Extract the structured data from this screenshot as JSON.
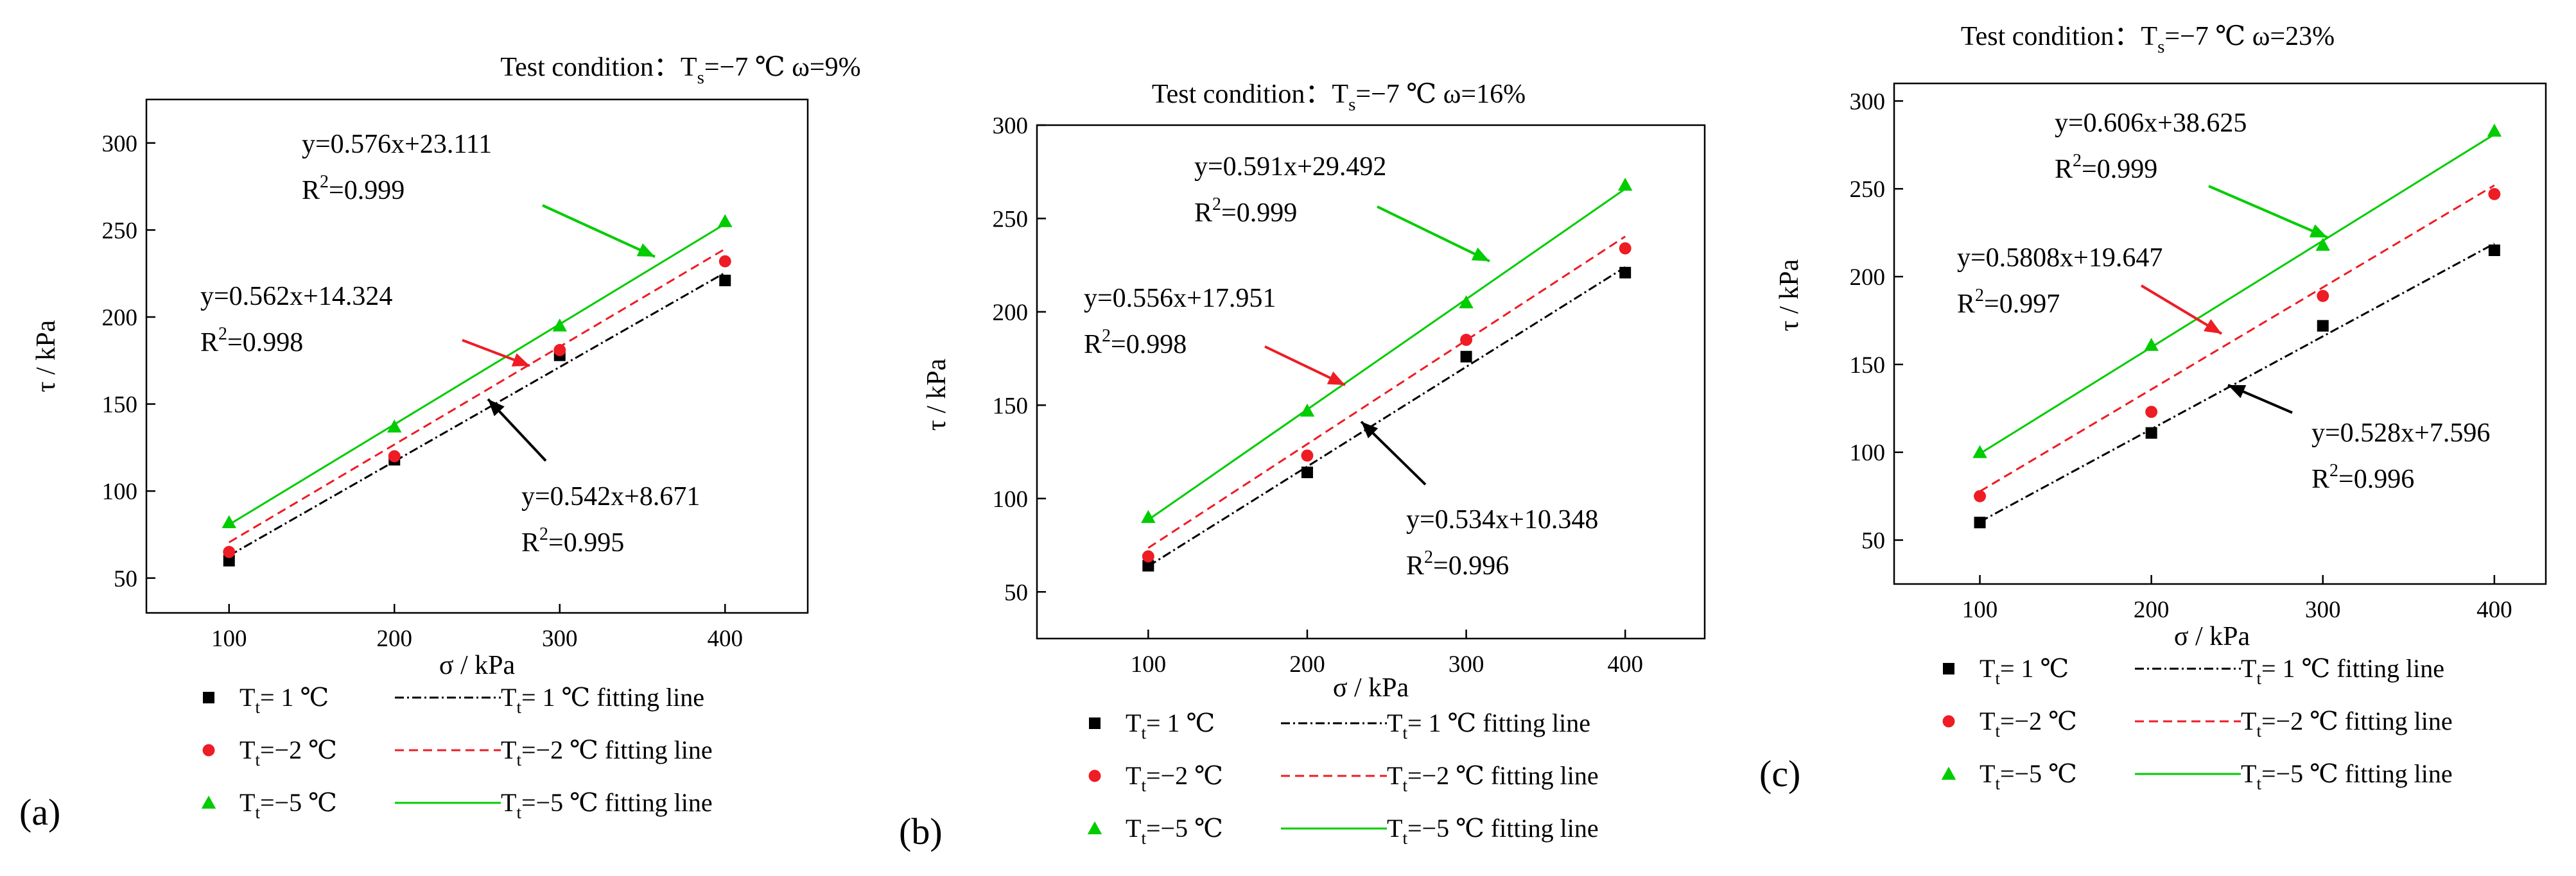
{
  "colors": {
    "t1": "#000000",
    "t2": "#ee1c24",
    "t5": "#00cc00",
    "black": "#000000"
  },
  "legend_labels": {
    "t1": {
      "main": "T",
      "sub": "t",
      "rest": "=  1 ℃"
    },
    "t2": {
      "main": "T",
      "sub": "t",
      "rest": "=−2 ℃"
    },
    "t5": {
      "main": "T",
      "sub": "t",
      "rest": "=−5 ℃"
    },
    "fit_suffix": "fitting line"
  },
  "chart_data": [
    {
      "panel": "(a)",
      "type": "scatter",
      "title": "Test condition：T",
      "title_sub": "s",
      "title_rest": "=−7 ℃   ω=9%",
      "xlabel": "σ / kPa",
      "ylabel": "τ / kPa",
      "xlim": [
        50,
        450
      ],
      "ylim": [
        30,
        325
      ],
      "xticks": [
        100,
        200,
        300,
        400
      ],
      "yticks": [
        50,
        100,
        150,
        200,
        250,
        300
      ],
      "x": [
        100,
        200,
        300,
        400
      ],
      "series": [
        {
          "key": "t1",
          "name": "T_t= 1 ℃",
          "marker": "square",
          "dash": "dashdot",
          "values": [
            60,
            118,
            178,
            221
          ],
          "slope": 0.542,
          "intercept": 8.671,
          "eq": "y=0.542x+8.671",
          "r2": "=0.995"
        },
        {
          "key": "t2",
          "name": "T_t=−2 ℃",
          "marker": "circle",
          "dash": "dash",
          "values": [
            65,
            120,
            181,
            232
          ],
          "slope": 0.562,
          "intercept": 14.324,
          "eq": "y=0.562x+14.324",
          "r2": "=0.998"
        },
        {
          "key": "t5",
          "name": "T_t=−5 ℃",
          "marker": "triangle",
          "dash": "solid",
          "values": [
            82,
            137,
            195,
            255
          ],
          "slope": 0.576,
          "intercept": 23.111,
          "eq": "y=0.576x+23.111",
          "r2": "=0.999"
        }
      ]
    },
    {
      "panel": "(b)",
      "type": "scatter",
      "title": "Test condition：T",
      "title_sub": "s",
      "title_rest": "=−7 ℃   ω=16%",
      "xlabel": "σ / kPa",
      "ylabel": "τ / kPa",
      "xlim": [
        30,
        450
      ],
      "ylim": [
        25,
        300
      ],
      "xticks": [
        100,
        200,
        300,
        400
      ],
      "yticks": [
        50,
        100,
        150,
        200,
        250,
        300
      ],
      "x": [
        100,
        200,
        300,
        400
      ],
      "series": [
        {
          "key": "t1",
          "name": "T_t= 1 ℃",
          "marker": "square",
          "dash": "dashdot",
          "values": [
            64,
            114,
            176,
            221
          ],
          "slope": 0.534,
          "intercept": 10.348,
          "eq": "y=0.534x+10.348",
          "r2": "=0.996"
        },
        {
          "key": "t2",
          "name": "T_t=−2 ℃",
          "marker": "circle",
          "dash": "dash",
          "values": [
            69,
            123,
            185,
            234
          ],
          "slope": 0.556,
          "intercept": 17.951,
          "eq": "y=0.556x+17.951",
          "r2": "=0.998"
        },
        {
          "key": "t5",
          "name": "T_t=−5 ℃",
          "marker": "triangle",
          "dash": "solid",
          "values": [
            90,
            147,
            205,
            268
          ],
          "slope": 0.591,
          "intercept": 29.492,
          "eq": "y=0.591x+29.492",
          "r2": "=0.999"
        }
      ]
    },
    {
      "panel": "(c)",
      "type": "scatter",
      "title": "Test condition：T",
      "title_sub": "s",
      "title_rest": "=−7 ℃   ω=23%",
      "xlabel": "σ / kPa",
      "ylabel": "τ / kPa",
      "xlim": [
        50,
        430
      ],
      "ylim": [
        25,
        310
      ],
      "xticks": [
        100,
        200,
        300,
        400
      ],
      "yticks": [
        50,
        100,
        150,
        200,
        250,
        300
      ],
      "x": [
        100,
        200,
        300,
        400
      ],
      "series": [
        {
          "key": "t1",
          "name": "T_t= 1 ℃",
          "marker": "square",
          "dash": "dashdot",
          "values": [
            60,
            111,
            172,
            215
          ],
          "slope": 0.528,
          "intercept": 7.596,
          "eq": "y=0.528x+7.596",
          "r2": "=0.996"
        },
        {
          "key": "t2",
          "name": "T_t=−2 ℃",
          "marker": "circle",
          "dash": "dash",
          "values": [
            75,
            123,
            189,
            247
          ],
          "slope": 0.5808,
          "intercept": 19.647,
          "eq": "y=0.5808x+19.647",
          "r2": "=0.997"
        },
        {
          "key": "t5",
          "name": "T_t=−5 ℃",
          "marker": "triangle",
          "dash": "solid",
          "values": [
            100,
            161,
            218,
            283
          ],
          "slope": 0.606,
          "intercept": 38.625,
          "eq": "y=0.606x+38.625",
          "r2": "=0.999"
        }
      ]
    }
  ]
}
